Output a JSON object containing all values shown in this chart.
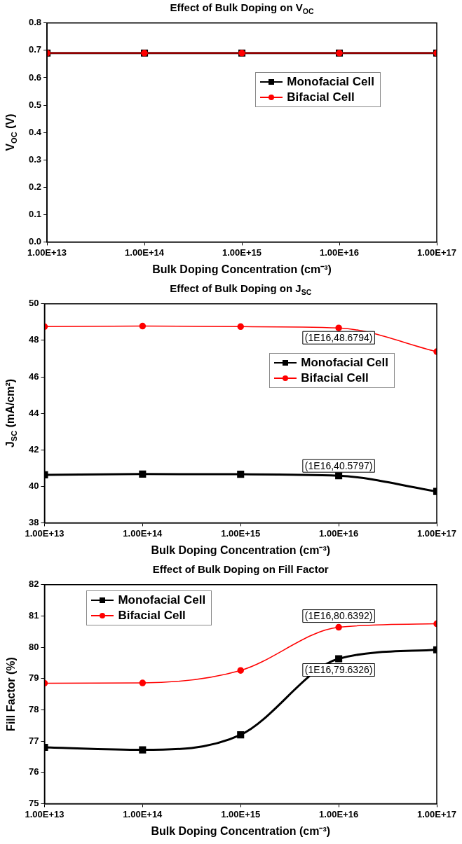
{
  "chart_data": [
    {
      "type": "line",
      "title": "Effect of Bulk Doping on V$_{OC}$",
      "xlabel": "Bulk Doping Concentration (cm⁻³)",
      "ylabel": "V$_{OC}$ (V)",
      "log": "x",
      "x": [
        10000000000000.0,
        100000000000000.0,
        1000000000000000.0,
        1e+16,
        1e+17
      ],
      "xlim": [
        10000000000000.0,
        1e+17
      ],
      "xticks": [
        {
          "value": 10000000000000.0,
          "label": "1.00E+13"
        },
        {
          "value": 100000000000000.0,
          "label": "1.00E+14"
        },
        {
          "value": 1000000000000000.0,
          "label": "1.00E+15"
        },
        {
          "value": 1e+16,
          "label": "1.00E+16"
        },
        {
          "value": 1e+17,
          "label": "1.00E+17"
        }
      ],
      "ylim": [
        0,
        0.8
      ],
      "yticks": [
        {
          "value": 0,
          "label": "0.0"
        },
        0.1,
        0.2,
        0.3,
        0.4,
        0.5,
        0.6,
        0.7,
        0.8
      ],
      "grid": false,
      "legend": "top right",
      "series": [
        {
          "name": "Monofacial Cell",
          "color": "#000000",
          "marker": "square",
          "values": [
            0.69,
            0.69,
            0.69,
            0.69,
            0.69
          ]
        },
        {
          "name": "Bifacial Cell",
          "color": "#ff0000",
          "marker": "circle",
          "values": [
            0.69,
            0.69,
            0.69,
            0.69,
            0.69
          ]
        }
      ]
    },
    {
      "type": "line",
      "title": "Effect of Bulk Doping on J$_{SC}$",
      "xlabel": "Bulk Doping Concentration (cm⁻³)",
      "ylabel": "J$_{SC}$  (mA/cm²)",
      "log": "x",
      "x": [
        10000000000000.0,
        100000000000000.0,
        1000000000000000.0,
        1e+16,
        1e+17
      ],
      "xlim": [
        10000000000000.0,
        1e+17
      ],
      "xticks": [
        {
          "value": 10000000000000.0,
          "label": "1.00E+13"
        },
        {
          "value": 100000000000000.0,
          "label": "1.00E+14"
        },
        {
          "value": 1000000000000000.0,
          "label": "1.00E+15"
        },
        {
          "value": 1e+16,
          "label": "1.00E+16"
        },
        {
          "value": 1e+17,
          "label": "1.00E+17"
        }
      ],
      "ylim": [
        38,
        50
      ],
      "yticks": [
        38,
        40,
        42,
        44,
        46,
        48,
        50
      ],
      "grid": false,
      "legend": "top right",
      "series": [
        {
          "name": "Monofacial Cell",
          "color": "#000000",
          "marker": "square",
          "values": [
            40.63,
            40.67,
            40.66,
            40.5797,
            39.72
          ]
        },
        {
          "name": "Bifacial Cell",
          "color": "#ff0000",
          "marker": "circle",
          "values": [
            48.75,
            48.78,
            48.75,
            48.6794,
            47.38
          ]
        }
      ],
      "annotations": [
        "(1E16,48.6794)",
        "(1E16,40.5797)"
      ]
    },
    {
      "type": "line",
      "title": "Effect of Bulk Doping on Fill Factor",
      "xlabel": "Bulk Doping Concentration (cm⁻³)",
      "ylabel": "Fill Factor (%)",
      "log": "x",
      "x": [
        10000000000000.0,
        100000000000000.0,
        1000000000000000.0,
        1e+16,
        1e+17
      ],
      "xlim": [
        10000000000000.0,
        1e+17
      ],
      "xticks": [
        {
          "value": 10000000000000.0,
          "label": "1.00E+13"
        },
        {
          "value": 100000000000000.0,
          "label": "1.00E+14"
        },
        {
          "value": 1000000000000000.0,
          "label": "1.00E+15"
        },
        {
          "value": 1e+16,
          "label": "1.00E+16"
        },
        {
          "value": 1e+17,
          "label": "1.00E+17"
        }
      ],
      "ylim": [
        75,
        82
      ],
      "yticks": [
        75,
        76,
        77,
        78,
        79,
        80,
        81,
        82
      ],
      "grid": false,
      "legend": "top left",
      "series": [
        {
          "name": "Monofacial Cell",
          "color": "#000000",
          "marker": "square",
          "values": [
            76.8,
            76.72,
            77.2,
            79.6326,
            79.92
          ]
        },
        {
          "name": "Bifacial Cell",
          "color": "#ff0000",
          "marker": "circle",
          "values": [
            78.85,
            78.86,
            79.26,
            80.6392,
            80.75
          ]
        }
      ],
      "annotations": [
        "(1E16,80.6392)",
        "(1E16,79.6326)"
      ]
    }
  ]
}
